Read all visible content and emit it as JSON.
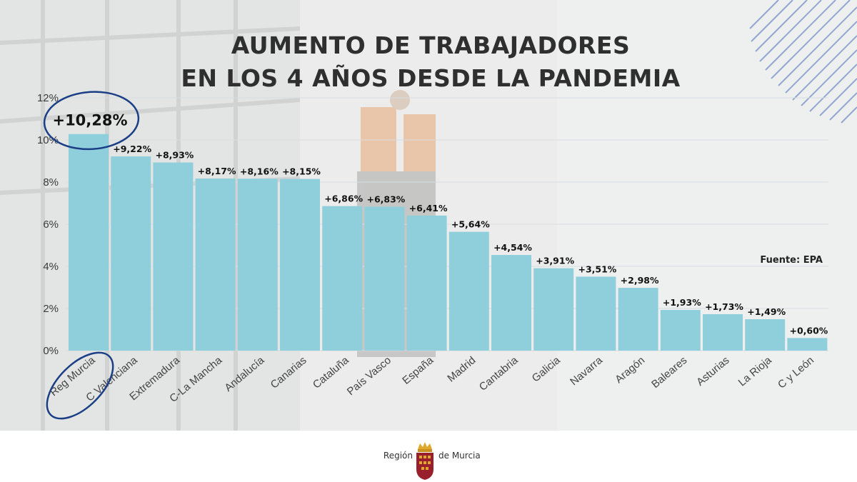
{
  "title_lines": [
    "AUMENTO DE TRABAJADORES",
    "EN LOS 4 AÑOS DESDE LA PANDEMIA"
  ],
  "source": "Fuente: EPA",
  "footer": {
    "left_text": "Región",
    "right_text": "de Murcia"
  },
  "colors": {
    "bar": "#8fcfdc",
    "title": "#2f2f2f",
    "highlight_ring": "#1b3f86",
    "grid": "#d8dde0"
  },
  "chart_data": {
    "type": "bar",
    "categories": [
      "Reg Murcia",
      "C Valenciana",
      "Extremadura",
      "C-La Mancha",
      "Andalucía",
      "Canarias",
      "Cataluña",
      "País Vasco",
      "España",
      "Madrid",
      "Cantabria",
      "Galicia",
      "Navarra",
      "Aragón",
      "Baleares",
      "Asturias",
      "La Rioja",
      "C y León"
    ],
    "values": [
      10.28,
      9.22,
      8.93,
      8.17,
      8.16,
      8.15,
      6.86,
      6.83,
      6.41,
      5.64,
      4.54,
      3.91,
      3.51,
      2.98,
      1.93,
      1.73,
      1.49,
      0.6
    ],
    "value_labels": [
      "+10,28%",
      "+9,22%",
      "+8,93%",
      "+8,17%",
      "+8,16%",
      "+8,15%",
      "+6,86%",
      "+6,83%",
      "+6,41%",
      "+5,64%",
      "+4,54%",
      "+3,91%",
      "+3,51%",
      "+2,98%",
      "+1,93%",
      "+1,73%",
      "+1,49%",
      "+0,60%"
    ],
    "yticks": [
      "0%",
      "2%",
      "4%",
      "6%",
      "8%",
      "10%",
      "12%"
    ],
    "ylim": [
      0,
      12
    ],
    "grid": true,
    "highlight": "Reg Murcia"
  }
}
